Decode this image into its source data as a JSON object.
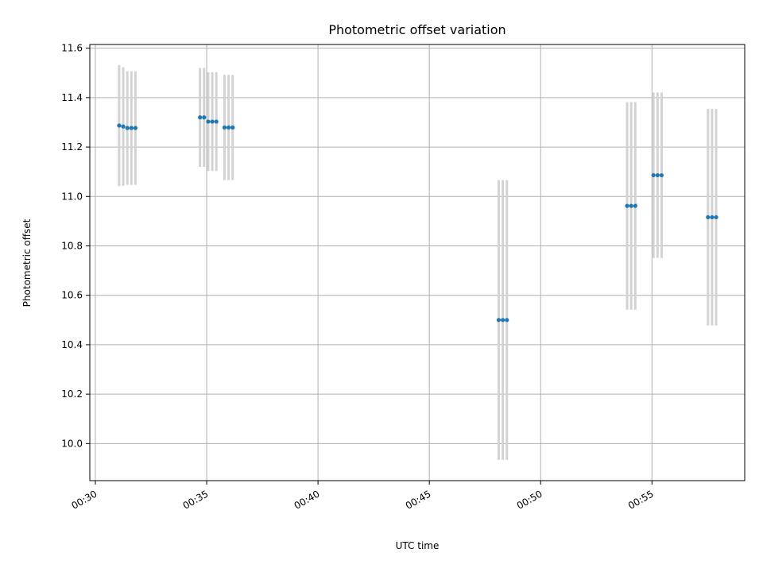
{
  "chart_data": {
    "type": "scatter",
    "title": "Photometric offset variation",
    "xlabel": "UTC time",
    "ylabel": "Photometric offset",
    "grid": true,
    "xlim": [
      "00:29:45",
      "00:59:10"
    ],
    "ylim": [
      9.85,
      11.615
    ],
    "x_ticks": [
      "00:30",
      "00:35",
      "00:40",
      "00:45",
      "00:50",
      "00:55"
    ],
    "y_ticks": [
      10.0,
      10.2,
      10.4,
      10.6,
      10.8,
      11.0,
      11.2,
      11.4,
      11.6
    ],
    "marker_color": "#1f77b4",
    "errorbar_color": "#d3d3d3",
    "points": [
      {
        "time": "00:31:04",
        "y": 11.287,
        "err": 0.245
      },
      {
        "time": "00:31:15",
        "y": 11.283,
        "err": 0.24
      },
      {
        "time": "00:31:26",
        "y": 11.277,
        "err": 0.23
      },
      {
        "time": "00:31:37",
        "y": 11.277,
        "err": 0.23
      },
      {
        "time": "00:31:48",
        "y": 11.277,
        "err": 0.23
      },
      {
        "time": "00:34:42",
        "y": 11.32,
        "err": 0.2
      },
      {
        "time": "00:34:53",
        "y": 11.32,
        "err": 0.2
      },
      {
        "time": "00:35:04",
        "y": 11.303,
        "err": 0.2
      },
      {
        "time": "00:35:15",
        "y": 11.303,
        "err": 0.2
      },
      {
        "time": "00:35:26",
        "y": 11.303,
        "err": 0.2
      },
      {
        "time": "00:35:48",
        "y": 11.279,
        "err": 0.213
      },
      {
        "time": "00:35:59",
        "y": 11.279,
        "err": 0.213
      },
      {
        "time": "00:36:10",
        "y": 11.279,
        "err": 0.213
      },
      {
        "time": "00:48:07",
        "y": 10.5,
        "err": 0.566
      },
      {
        "time": "00:48:18",
        "y": 10.5,
        "err": 0.566
      },
      {
        "time": "00:48:29",
        "y": 10.5,
        "err": 0.566
      },
      {
        "time": "00:53:53",
        "y": 10.962,
        "err": 0.42
      },
      {
        "time": "00:54:04",
        "y": 10.962,
        "err": 0.42
      },
      {
        "time": "00:54:15",
        "y": 10.962,
        "err": 0.42
      },
      {
        "time": "00:55:04",
        "y": 11.086,
        "err": 0.335
      },
      {
        "time": "00:55:15",
        "y": 11.086,
        "err": 0.335
      },
      {
        "time": "00:55:26",
        "y": 11.086,
        "err": 0.335
      },
      {
        "time": "00:57:31",
        "y": 10.916,
        "err": 0.438
      },
      {
        "time": "00:57:42",
        "y": 10.916,
        "err": 0.438
      },
      {
        "time": "00:57:53",
        "y": 10.916,
        "err": 0.438
      }
    ]
  }
}
